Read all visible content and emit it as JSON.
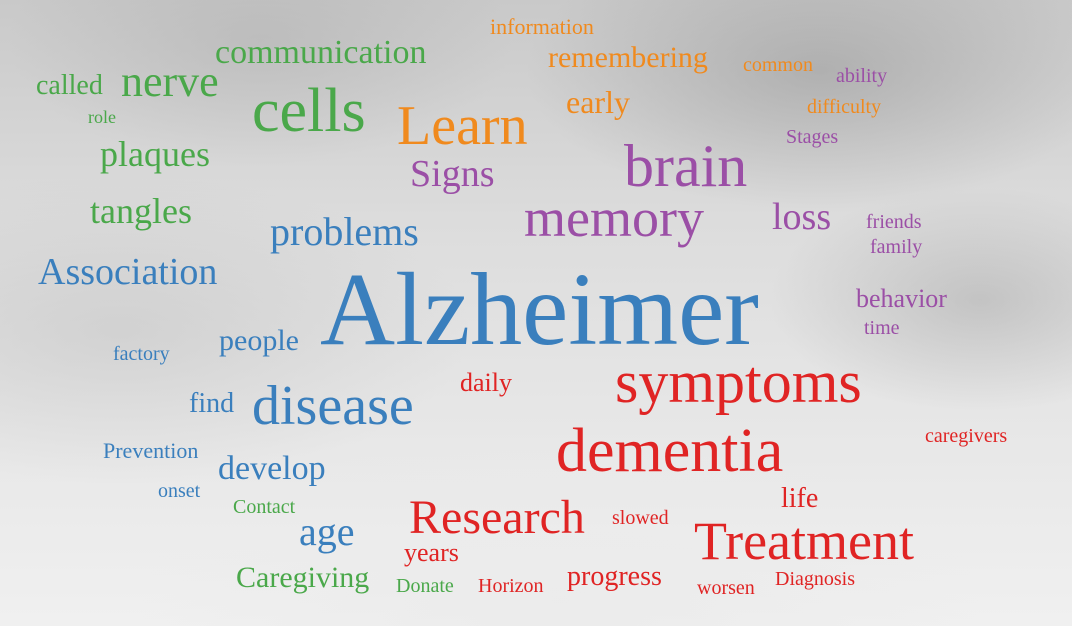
{
  "colors": {
    "green": "#4aa84a",
    "orange": "#f08a1e",
    "purple": "#9b4fa6",
    "blue": "#3a7fbd",
    "red": "#e02424"
  },
  "words": {
    "information": "information",
    "communication": "communication",
    "remembering": "remembering",
    "common": "common",
    "called": "called",
    "nerve": "nerve",
    "ability": "ability",
    "cells": "cells",
    "learn": "Learn",
    "early": "early",
    "difficulty": "difficulty",
    "role": "role",
    "stages": "Stages",
    "plaques": "plaques",
    "brain": "brain",
    "signs": "Signs",
    "tangles": "tangles",
    "memory": "memory",
    "loss": "loss",
    "friends": "friends",
    "problems": "problems",
    "family": "family",
    "association": "Association",
    "alzheimer": "Alzheimer",
    "behavior": "behavior",
    "people": "people",
    "time": "time",
    "factory": "factory",
    "symptoms": "symptoms",
    "daily": "daily",
    "find": "find",
    "disease": "disease",
    "caregivers": "caregivers",
    "prevention": "Prevention",
    "dementia": "dementia",
    "develop": "develop",
    "onset": "onset",
    "life": "life",
    "contact": "Contact",
    "research": "Research",
    "slowed": "slowed",
    "treatment": "Treatment",
    "age": "age",
    "years": "years",
    "caregiving": "Caregiving",
    "progress": "progress",
    "diagnosis": "Diagnosis",
    "donate": "Donate",
    "horizon": "Horizon",
    "worsen": "worsen"
  }
}
